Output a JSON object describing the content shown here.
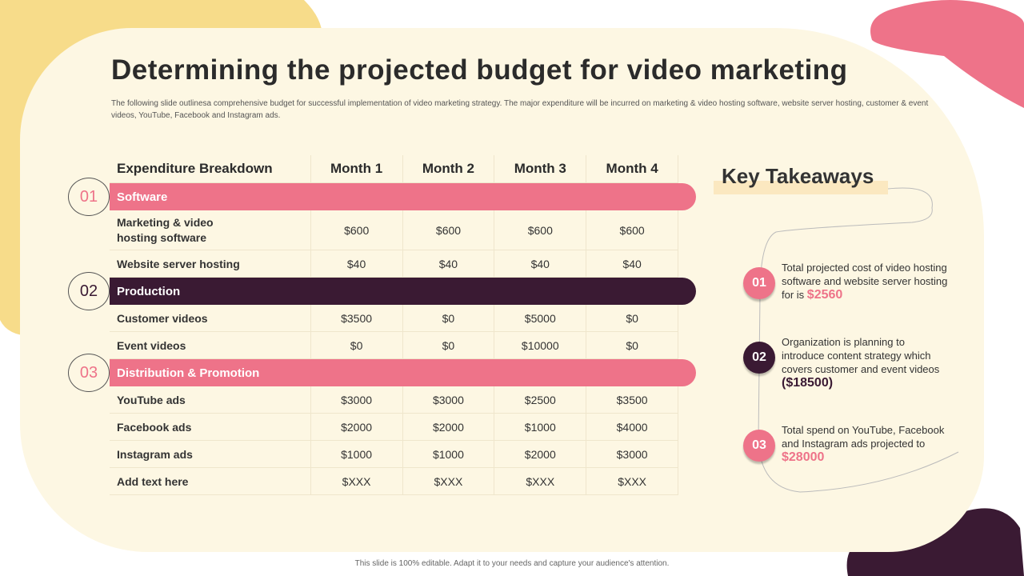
{
  "title": "Determining the projected budget for video marketing",
  "subtitle": "The following slide outlinesa comprehensive budget for successful implementation of video marketing strategy. The major expenditure will be incurred on marketing & video hosting software, website server hosting, customer & event videos, YouTube, Facebook and Instagram ads.",
  "table": {
    "headers": [
      "Expenditure Breakdown",
      "Month 1",
      "Month 2",
      "Month 3",
      "Month 4"
    ],
    "sections": [
      {
        "num": "01",
        "label": "Software",
        "color": "#ee7389",
        "rows": [
          {
            "label": "Marketing & video hosting software",
            "values": [
              "$600",
              "$600",
              "$600",
              "$600"
            ]
          },
          {
            "label": "Website server hosting",
            "values": [
              "$40",
              "$40",
              "$40",
              "$40"
            ]
          }
        ]
      },
      {
        "num": "02",
        "label": "Production",
        "color": "#3a1a33",
        "rows": [
          {
            "label": "Customer videos",
            "values": [
              "$3500",
              "$0",
              "$5000",
              "$0"
            ]
          },
          {
            "label": "Event videos",
            "values": [
              "$0",
              "$0",
              "$10000",
              "$0"
            ]
          }
        ]
      },
      {
        "num": "03",
        "label": "Distribution & Promotion",
        "color": "#ee7389",
        "rows": [
          {
            "label": "YouTube ads",
            "values": [
              "$3000",
              "$3000",
              "$2500",
              "$3500"
            ]
          },
          {
            "label": "Facebook ads",
            "values": [
              "$2000",
              "$2000",
              "$1000",
              "$4000"
            ]
          },
          {
            "label": "Instagram ads",
            "values": [
              "$1000",
              "$1000",
              "$2000",
              "$3000"
            ]
          },
          {
            "label": "Add text here",
            "values": [
              "$XXX",
              "$XXX",
              "$XXX",
              "$XXX"
            ]
          }
        ]
      }
    ]
  },
  "takeaways": {
    "title": "Key Takeaways",
    "items": [
      {
        "num": "01",
        "text": "Total projected cost of video hosting software and website server hosting for is",
        "value": "$2560"
      },
      {
        "num": "02",
        "text": "Organization is planning to introduce content strategy which covers customer and event videos",
        "value": "($18500)"
      },
      {
        "num": "03",
        "text": "Total spend on YouTube, Facebook and Instagram ads projected to",
        "value": "$28000"
      }
    ]
  },
  "footer": "This slide is 100% editable. Adapt it to your needs and capture your audience's attention."
}
